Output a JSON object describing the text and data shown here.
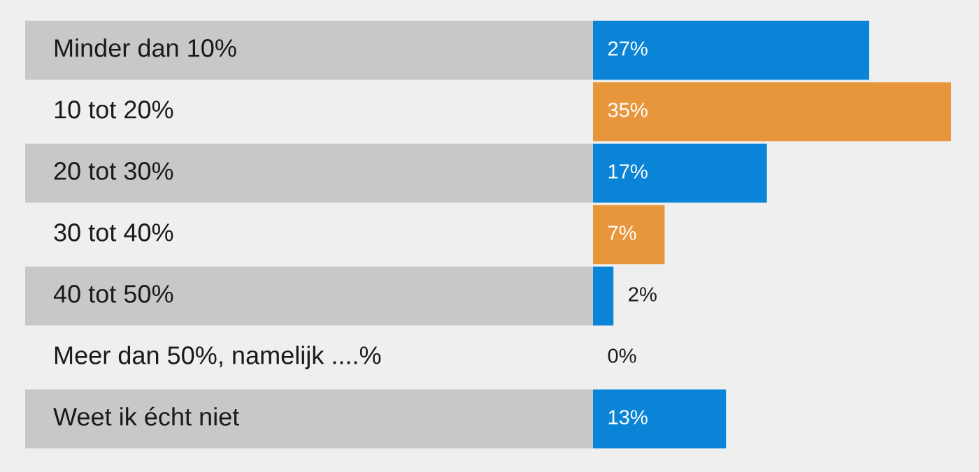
{
  "chart_data": {
    "type": "bar",
    "orientation": "horizontal",
    "categories": [
      "Minder dan 10%",
      "10 tot 20%",
      "20 tot 30%",
      "30 tot 40%",
      "40 tot 50%",
      "Meer dan 50%, namelijk ....%",
      "Weet ik écht niet"
    ],
    "values": [
      27,
      35,
      17,
      7,
      2,
      0,
      13
    ],
    "colors": [
      "#0a84d6",
      "#e8963c",
      "#0a84d6",
      "#e8963c",
      "#0a84d6",
      "#0a84d6",
      "#0a84d6"
    ],
    "value_labels": [
      "27%",
      "35%",
      "17%",
      "7%",
      "2%",
      "0%",
      "13%"
    ]
  }
}
